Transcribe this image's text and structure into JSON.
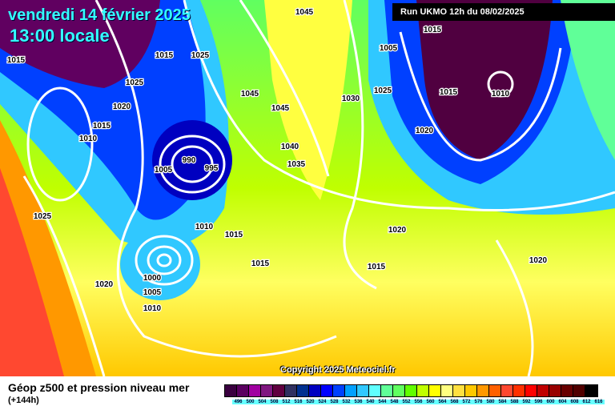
{
  "header": {
    "date": "vendredi 14 février 2025",
    "time": "13:00 locale",
    "run": "Run UKMO 12h du 08/02/2025"
  },
  "copyright": "Copyright 2025 Meteociel.fr",
  "footer": {
    "title": "Géop z500 et pression niveau mer",
    "subtitle": "(+144h)"
  },
  "legend": {
    "colors": [
      "#3a0040",
      "#5a0060",
      "#a000a0",
      "#801880",
      "#600040",
      "#303060",
      "#003090",
      "#0000c0",
      "#0000ff",
      "#0040ff",
      "#00a0ff",
      "#30c8ff",
      "#60ffff",
      "#60ff98",
      "#60ff60",
      "#60ff00",
      "#c0ff00",
      "#ffff00",
      "#ffff80",
      "#ffe040",
      "#ffc800",
      "#ff9800",
      "#ff6000",
      "#ff4830",
      "#ff3000",
      "#ff0000",
      "#c00000",
      "#980000",
      "#680000",
      "#500000",
      "#000000"
    ],
    "labels": [
      "496",
      "500",
      "504",
      "508",
      "512",
      "516",
      "520",
      "524",
      "528",
      "532",
      "536",
      "540",
      "544",
      "548",
      "552",
      "556",
      "560",
      "564",
      "568",
      "572",
      "576",
      "580",
      "584",
      "588",
      "592",
      "596",
      "600",
      "604",
      "608",
      "612",
      "616"
    ]
  },
  "pressure_labels": [
    "1015",
    "1045",
    "1015",
    "1025",
    "1015",
    "1005",
    "1025",
    "1020",
    "1015",
    "1010",
    "1025",
    "1045",
    "1045",
    "1025",
    "1030",
    "1015",
    "1010",
    "1020",
    "1040",
    "990",
    "995",
    "1005",
    "1035",
    "1010",
    "1015",
    "1020",
    "1015",
    "1020",
    "1020",
    "1000",
    "1005",
    "1010",
    "1015"
  ]
}
